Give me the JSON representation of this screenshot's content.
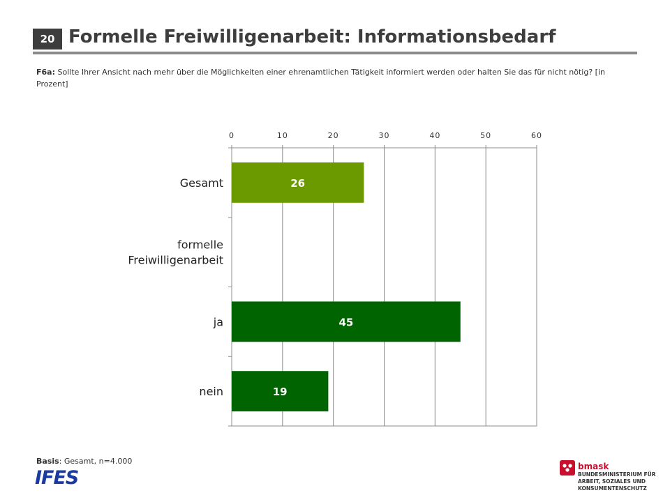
{
  "slide": {
    "page_number": "20",
    "title": "Formelle Freiwilligenarbeit: Informationsbedarf",
    "question_code": "F6a:",
    "question_text": " Sollte Ihrer Ansicht nach mehr über die Möglichkeiten einer ehrenamtlichen Tätigkeit informiert werden oder halten Sie das für nicht nötig? [in Prozent]",
    "basis_label": "Basis",
    "basis_text": ": Gesamt, n=4.000"
  },
  "logos": {
    "ifes": "IFES",
    "bmask_name": "bmask",
    "bmask_line1": "BUNDESMINISTERIUM FÜR",
    "bmask_line2": "ARBEIT, SOZIALES UND",
    "bmask_line3": "KONSUMENTENSCHUTZ",
    "bmask_color": "#c8102e"
  },
  "chart_data": {
    "type": "bar",
    "orientation": "horizontal",
    "categories": [
      "Gesamt",
      "formelle Freiwilligenarbeit",
      "ja",
      "nein"
    ],
    "category_lines": [
      [
        "Gesamt"
      ],
      [
        "formelle",
        "Freiwilligenarbeit"
      ],
      [
        "ja"
      ],
      [
        "nein"
      ]
    ],
    "values": [
      26,
      null,
      45,
      19
    ],
    "value_labels": [
      "26",
      "",
      "45",
      "19"
    ],
    "colors": [
      "#6a9a00",
      null,
      "#006400",
      "#006400"
    ],
    "xlim": [
      0,
      60
    ],
    "x_ticks": [
      0,
      10,
      20,
      30,
      40,
      50,
      60
    ],
    "tick_labels": [
      "0",
      "10",
      "20",
      "30",
      "40",
      "50",
      "60"
    ],
    "xlabel": "",
    "ylabel": "",
    "grid": true,
    "axis_position": "top"
  }
}
